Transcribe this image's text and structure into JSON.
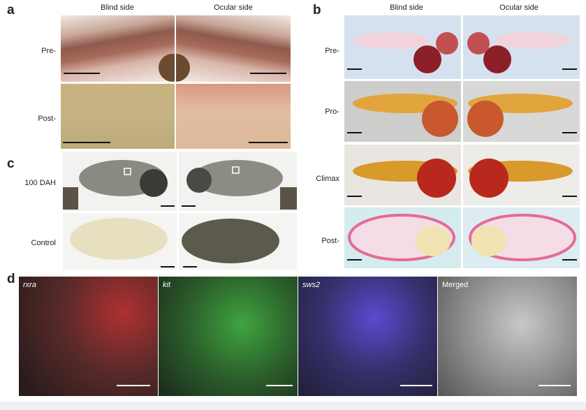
{
  "panel_a": {
    "label": "a",
    "columns": [
      "Blind side",
      "Ocular side"
    ],
    "rows": [
      "Pre-",
      "Post-"
    ]
  },
  "panel_b": {
    "label": "b",
    "columns": [
      "Blind side",
      "Ocular side"
    ],
    "rows": [
      "Pre-",
      "Pro-",
      "Climax",
      "Post-"
    ]
  },
  "panel_c": {
    "label": "c",
    "rows": [
      "100 DAH",
      "Control"
    ]
  },
  "panel_d": {
    "label": "d",
    "channels": [
      "rxra",
      "kit",
      "sws2",
      "Merged"
    ]
  }
}
